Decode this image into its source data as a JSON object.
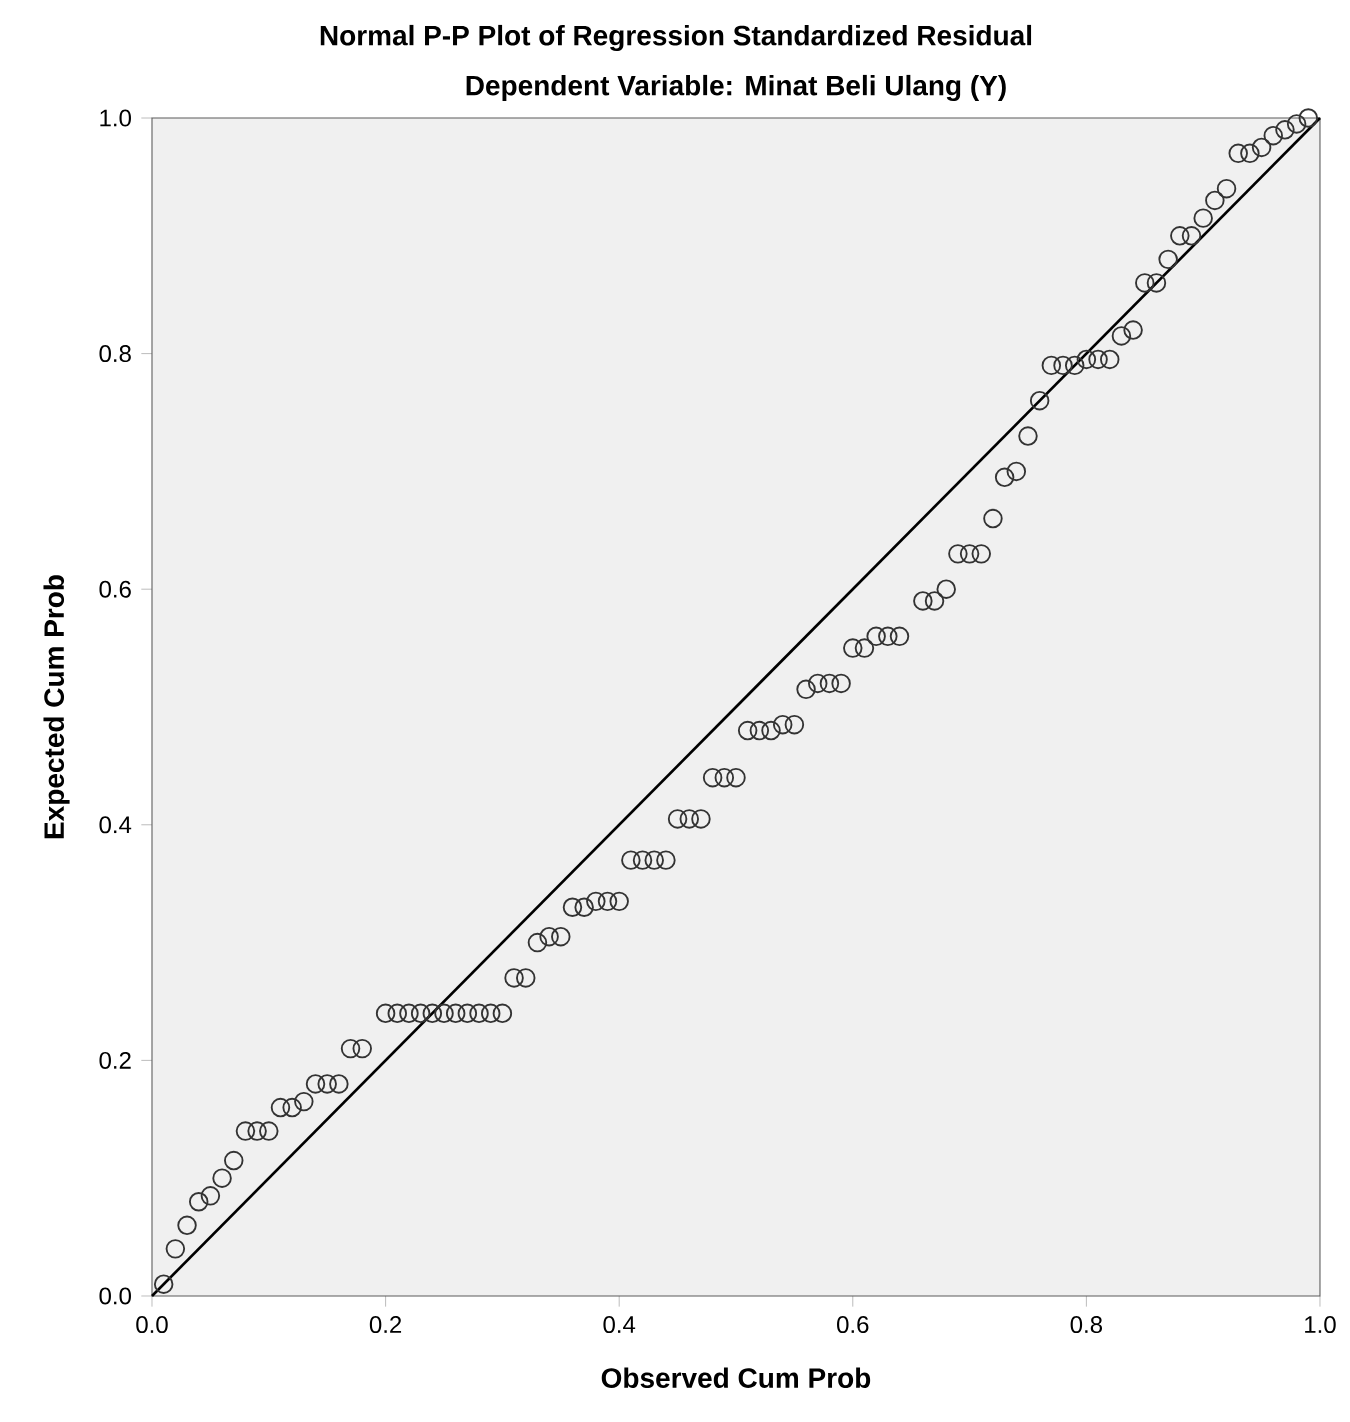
{
  "chart_data": {
    "type": "scatter",
    "title": "Normal P-P Plot of Regression Standardized Residual",
    "subtitle": "Dependent Variable: Minat Beli Ulang (Y)",
    "xlabel": "Observed Cum Prob",
    "ylabel": "Expected Cum Prob",
    "grid": false,
    "xlim": [
      0,
      1
    ],
    "ylim": [
      0,
      1
    ],
    "xticks": [
      {
        "value": 0,
        "label": "0.0"
      },
      {
        "value": 0.2,
        "label": "0.2"
      },
      {
        "value": 0.4,
        "label": "0.4"
      },
      {
        "value": 0.6,
        "label": "0.6"
      },
      {
        "value": 0.8,
        "label": "0.8"
      },
      {
        "value": 1,
        "label": "1.0"
      }
    ],
    "yticks": [
      {
        "value": 0,
        "label": "0.0"
      },
      {
        "value": 0.2,
        "label": "0.2"
      },
      {
        "value": 0.4,
        "label": "0.4"
      },
      {
        "value": 0.6,
        "label": "0.6"
      },
      {
        "value": 0.8,
        "label": "0.8"
      },
      {
        "value": 1,
        "label": "1.0"
      }
    ],
    "series": [
      {
        "marker": "circle",
        "color": "#333333",
        "x": [
          0.01,
          0.02,
          0.03,
          0.04,
          0.05,
          0.06,
          0.07,
          0.08,
          0.09,
          0.1,
          0.11,
          0.12,
          0.13,
          0.14,
          0.15,
          0.16,
          0.17,
          0.18,
          0.2,
          0.21,
          0.22,
          0.23,
          0.24,
          0.25,
          0.26,
          0.27,
          0.28,
          0.29,
          0.3,
          0.31,
          0.32,
          0.33,
          0.34,
          0.35,
          0.36,
          0.37,
          0.38,
          0.39,
          0.4,
          0.41,
          0.42,
          0.43,
          0.44,
          0.45,
          0.46,
          0.47,
          0.48,
          0.49,
          0.5,
          0.51,
          0.52,
          0.53,
          0.54,
          0.55,
          0.56,
          0.57,
          0.58,
          0.59,
          0.6,
          0.61,
          0.62,
          0.63,
          0.64,
          0.66,
          0.67,
          0.68,
          0.69,
          0.7,
          0.71,
          0.72,
          0.73,
          0.74,
          0.75,
          0.76,
          0.77,
          0.78,
          0.79,
          0.8,
          0.81,
          0.82,
          0.83,
          0.84,
          0.85,
          0.86,
          0.87,
          0.88,
          0.89,
          0.9,
          0.91,
          0.92,
          0.93,
          0.94,
          0.95,
          0.96,
          0.97,
          0.98,
          0.99
        ],
        "values": [
          0.01,
          0.04,
          0.06,
          0.08,
          0.085,
          0.1,
          0.115,
          0.14,
          0.14,
          0.14,
          0.16,
          0.16,
          0.165,
          0.18,
          0.18,
          0.18,
          0.21,
          0.21,
          0.24,
          0.24,
          0.24,
          0.24,
          0.24,
          0.24,
          0.24,
          0.24,
          0.24,
          0.24,
          0.24,
          0.27,
          0.27,
          0.3,
          0.305,
          0.305,
          0.33,
          0.33,
          0.335,
          0.335,
          0.335,
          0.37,
          0.37,
          0.37,
          0.37,
          0.405,
          0.405,
          0.405,
          0.44,
          0.44,
          0.44,
          0.48,
          0.48,
          0.48,
          0.485,
          0.485,
          0.515,
          0.52,
          0.52,
          0.52,
          0.55,
          0.55,
          0.56,
          0.56,
          0.56,
          0.59,
          0.59,
          0.6,
          0.63,
          0.63,
          0.63,
          0.66,
          0.695,
          0.7,
          0.73,
          0.76,
          0.79,
          0.79,
          0.79,
          0.795,
          0.795,
          0.795,
          0.815,
          0.82,
          0.86,
          0.86,
          0.88,
          0.9,
          0.9,
          0.915,
          0.93,
          0.94,
          0.97,
          0.97,
          0.975,
          0.985,
          0.99,
          0.995,
          1.0
        ]
      },
      {
        "type": "line",
        "marker": "none",
        "color": "#000000",
        "x": [
          0,
          1
        ],
        "values": [
          0,
          1
        ]
      }
    ]
  }
}
